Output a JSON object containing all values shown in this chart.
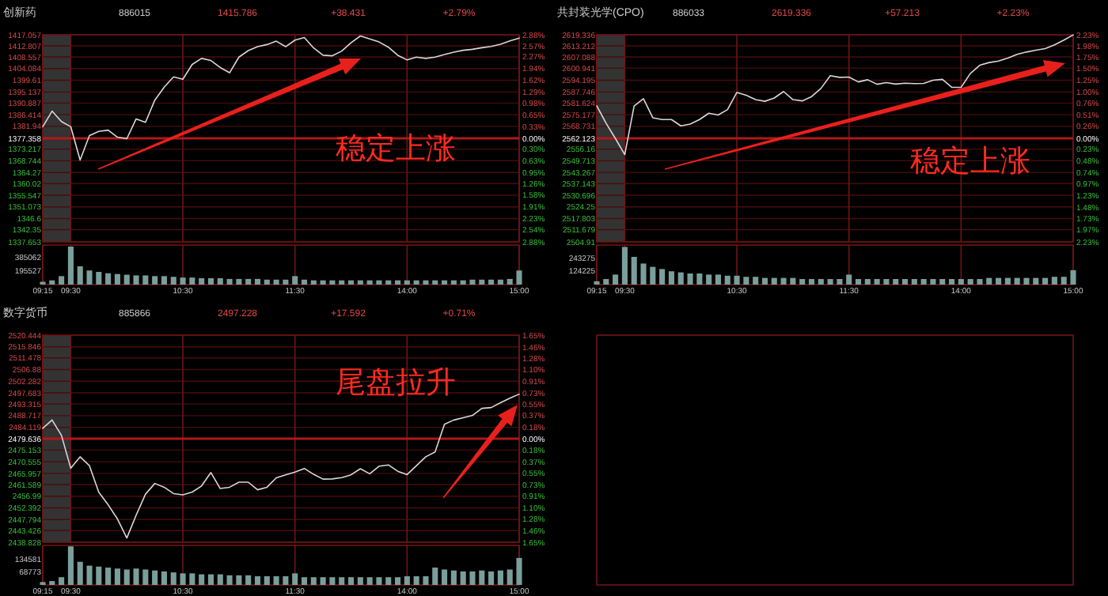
{
  "chart_data": [
    {
      "type": "line",
      "title": "创新药",
      "annotations": [
        "886015",
        "1415.786",
        "+38.431",
        "+2.79%",
        "稳定上涨"
      ],
      "categories": [
        "09:15",
        null,
        null,
        "09:30",
        null,
        null,
        null,
        null,
        null,
        null,
        null,
        null,
        null,
        null,
        null,
        "10:30",
        null,
        null,
        null,
        null,
        null,
        null,
        null,
        null,
        null,
        null,
        null,
        "11:30",
        null,
        null,
        null,
        null,
        null,
        null,
        null,
        null,
        null,
        null,
        null,
        "14:00",
        null,
        null,
        null,
        null,
        null,
        null,
        null,
        null,
        null,
        null,
        null,
        "15:00"
      ],
      "ylim": [
        1337.653,
        1417.057
      ],
      "yticks": [
        1417.057,
        1412.807,
        1408.557,
        1404.084,
        1399.61,
        1395.137,
        1390.887,
        1386.414,
        1381.94,
        1377.358,
        1373.217,
        1368.744,
        1364.27,
        1360.02,
        1355.547,
        1351.073,
        1346.6,
        1342.35,
        1337.653
      ],
      "y2lim": [
        -2.88,
        2.88
      ],
      "y2ticks": [
        {
          "value": 2.88,
          "label": "2.88%"
        },
        {
          "value": 2.57,
          "label": "2.57%"
        },
        {
          "value": 2.27,
          "label": "2.27%"
        },
        {
          "value": 1.94,
          "label": "1.94%"
        },
        {
          "value": 1.62,
          "label": "1.62%"
        },
        {
          "value": 1.29,
          "label": "1.29%"
        },
        {
          "value": 0.98,
          "label": "0.98%"
        },
        {
          "value": 0.65,
          "label": "0.65%"
        },
        {
          "value": 0.33,
          "label": "0.33%"
        },
        {
          "value": 0,
          "label": "0.00%"
        },
        {
          "value": -0.3,
          "label": "0.30%"
        },
        {
          "value": -0.63,
          "label": "0.63%"
        },
        {
          "value": -0.95,
          "label": "0.95%"
        },
        {
          "value": -1.26,
          "label": "1.26%"
        },
        {
          "value": -1.58,
          "label": "1.58%"
        },
        {
          "value": -1.91,
          "label": "1.91%"
        },
        {
          "value": -2.23,
          "label": "2.23%"
        },
        {
          "value": -2.54,
          "label": "2.54%"
        },
        {
          "value": -2.88,
          "label": "2.88%"
        }
      ],
      "tick_labels": "y",
      "grid": true,
      "ref_lines": [
        {
          "axis": "y",
          "value": 1377.358,
          "color": "#b01818"
        }
      ],
      "bands": [
        {
          "axis": "x",
          "from": "09:15",
          "to": "09:30",
          "color": "#333333"
        }
      ],
      "series": [
        {
          "color": "#d8d8d8",
          "values": [
            1381.8,
            1387.8,
            1383.8,
            1381.8,
            1369,
            1378.4,
            1380,
            1380.5,
            1377.8,
            1377.2,
            1384.8,
            1383.5,
            1392,
            1397,
            1400.9,
            1400,
            1405.7,
            1408,
            1407.2,
            1404.5,
            1402.5,
            1408.5,
            1411,
            1412.5,
            1413.3,
            1414.6,
            1412.5,
            1415,
            1416,
            1412,
            1409.2,
            1409,
            1410.8,
            1414,
            1416.6,
            1415.5,
            1414.3,
            1412.3,
            1409.2,
            1407.4,
            1408.5,
            1408,
            1408.5,
            1409.5,
            1410.4,
            1411.1,
            1411.5,
            1412.1,
            1412.6,
            1413.4,
            1414.7,
            1415.8
          ]
        }
      ]
    },
    {
      "type": "bar",
      "color": "#7a9e9b",
      "categories": [
        "09:15",
        null,
        null,
        "09:30",
        null,
        null,
        null,
        null,
        null,
        null,
        null,
        null,
        null,
        null,
        null,
        "10:30",
        null,
        null,
        null,
        null,
        null,
        null,
        null,
        null,
        null,
        null,
        null,
        "11:30",
        null,
        null,
        null,
        null,
        null,
        null,
        null,
        null,
        null,
        null,
        null,
        "14:00",
        null,
        null,
        null,
        null,
        null,
        null,
        null,
        null,
        null,
        null,
        null,
        "15:00"
      ],
      "ylim": [
        0,
        562000
      ],
      "yticks": [
        385062,
        195527
      ],
      "grid": "x",
      "values": [
        40000,
        60000,
        120000,
        540000,
        260000,
        200000,
        180000,
        160000,
        150000,
        140000,
        130000,
        130000,
        120000,
        120000,
        110000,
        100000,
        100000,
        90000,
        90000,
        90000,
        80000,
        80000,
        80000,
        80000,
        70000,
        70000,
        70000,
        120000,
        70000,
        60000,
        60000,
        60000,
        60000,
        60000,
        60000,
        60000,
        60000,
        60000,
        60000,
        60000,
        60000,
        60000,
        60000,
        60000,
        60000,
        60000,
        70000,
        70000,
        70000,
        70000,
        80000,
        200000
      ]
    },
    {
      "type": "line",
      "title": "共封装光学(CPO)",
      "annotations": [
        "886033",
        "2619.336",
        "+57.213",
        "+2.23%",
        "稳定上涨"
      ],
      "categories": [
        "09:15",
        null,
        null,
        "09:30",
        null,
        null,
        null,
        null,
        null,
        null,
        null,
        null,
        null,
        null,
        null,
        "10:30",
        null,
        null,
        null,
        null,
        null,
        null,
        null,
        null,
        null,
        null,
        null,
        "11:30",
        null,
        null,
        null,
        null,
        null,
        null,
        null,
        null,
        null,
        null,
        null,
        "14:00",
        null,
        null,
        null,
        null,
        null,
        null,
        null,
        null,
        null,
        null,
        null,
        "15:00"
      ],
      "ylim": [
        2504.91,
        2619.336
      ],
      "yticks": [
        2619.336,
        2613.212,
        2607.088,
        2600.941,
        2594.195,
        2587.746,
        2581.624,
        2575.177,
        2568.731,
        2562.123,
        2556.16,
        2549.713,
        2543.267,
        2537.143,
        2530.696,
        2524.25,
        2517.803,
        2511.679,
        2504.91
      ],
      "y2lim": [
        -2.23,
        2.23
      ],
      "y2ticks": [
        {
          "value": 2.23,
          "label": "2.23%"
        },
        {
          "value": 1.98,
          "label": "1.98%"
        },
        {
          "value": 1.75,
          "label": "1.75%"
        },
        {
          "value": 1.5,
          "label": "1.50%"
        },
        {
          "value": 1.25,
          "label": "1.25%"
        },
        {
          "value": 1,
          "label": "1.00%"
        },
        {
          "value": 0.76,
          "label": "0.76%"
        },
        {
          "value": 0.51,
          "label": "0.51%"
        },
        {
          "value": 0.26,
          "label": "0.26%"
        },
        {
          "value": 0,
          "label": "0.00%"
        },
        {
          "value": -0.23,
          "label": "0.23%"
        },
        {
          "value": -0.48,
          "label": "0.48%"
        },
        {
          "value": -0.74,
          "label": "0.74%"
        },
        {
          "value": -0.97,
          "label": "0.97%"
        },
        {
          "value": -1.23,
          "label": "1.23%"
        },
        {
          "value": -1.48,
          "label": "1.48%"
        },
        {
          "value": -1.73,
          "label": "1.73%"
        },
        {
          "value": -1.97,
          "label": "1.97%"
        },
        {
          "value": -2.23,
          "label": "2.23%"
        }
      ],
      "tick_labels": "y",
      "grid": true,
      "ref_lines": [
        {
          "axis": "y",
          "value": 2562.123,
          "color": "#b01818"
        }
      ],
      "bands": [
        {
          "axis": "x",
          "from": "09:15",
          "to": "09:30",
          "color": "#333333"
        }
      ],
      "series": [
        {
          "color": "#d8d8d8",
          "values": [
            2580.1,
            2570.5,
            2562,
            2553.1,
            2580,
            2584,
            2573.5,
            2572.5,
            2572.5,
            2569,
            2570,
            2572.5,
            2576,
            2575,
            2578,
            2587.5,
            2585.9,
            2583.5,
            2582.6,
            2584.4,
            2588,
            2583.5,
            2582.8,
            2585.2,
            2589.7,
            2596.7,
            2595.8,
            2596,
            2593.3,
            2594.5,
            2592,
            2592.9,
            2592.1,
            2592.6,
            2592.4,
            2592.5,
            2594.2,
            2594.7,
            2590.3,
            2590.3,
            2598,
            2602.5,
            2604,
            2604.8,
            2606.5,
            2608.5,
            2609.8,
            2610.8,
            2611.7,
            2613.8,
            2616.4,
            2619.3
          ]
        }
      ]
    },
    {
      "type": "bar",
      "color": "#7a9e9b",
      "categories": [
        "09:15",
        null,
        null,
        "09:30",
        null,
        null,
        null,
        null,
        null,
        null,
        null,
        null,
        null,
        null,
        null,
        "10:30",
        null,
        null,
        null,
        null,
        null,
        null,
        null,
        null,
        null,
        null,
        null,
        "11:30",
        null,
        null,
        null,
        null,
        null,
        null,
        null,
        null,
        null,
        null,
        null,
        "14:00",
        null,
        null,
        null,
        null,
        null,
        null,
        null,
        null,
        null,
        null,
        null,
        "15:00"
      ],
      "ylim": [
        0,
        357000
      ],
      "yticks": [
        243275,
        124225
      ],
      "grid": "x",
      "values": [
        30000,
        50000,
        90000,
        340000,
        250000,
        190000,
        160000,
        140000,
        120000,
        110000,
        100000,
        100000,
        90000,
        90000,
        80000,
        80000,
        70000,
        70000,
        60000,
        60000,
        60000,
        60000,
        50000,
        50000,
        50000,
        50000,
        50000,
        90000,
        50000,
        50000,
        50000,
        50000,
        50000,
        50000,
        50000,
        50000,
        50000,
        50000,
        50000,
        50000,
        50000,
        50000,
        60000,
        60000,
        60000,
        60000,
        60000,
        60000,
        60000,
        70000,
        70000,
        130000
      ]
    },
    {
      "type": "line",
      "title": "数字货币",
      "annotations": [
        "885866",
        "2497.228",
        "+17.592",
        "+0.71%",
        "尾盘拉升"
      ],
      "categories": [
        "09:15",
        null,
        null,
        "09:30",
        null,
        null,
        null,
        null,
        null,
        null,
        null,
        null,
        null,
        null,
        null,
        "10:30",
        null,
        null,
        null,
        null,
        null,
        null,
        null,
        null,
        null,
        null,
        null,
        "11:30",
        null,
        null,
        null,
        null,
        null,
        null,
        null,
        null,
        null,
        null,
        null,
        "14:00",
        null,
        null,
        null,
        null,
        null,
        null,
        null,
        null,
        null,
        null,
        null,
        "15:00"
      ],
      "ylim": [
        2438.828,
        2520.444
      ],
      "yticks": [
        2520.444,
        2515.846,
        2511.478,
        2506.88,
        2502.282,
        2497.683,
        2493.315,
        2488.717,
        2484.119,
        2479.636,
        2475.153,
        2470.555,
        2465.957,
        2461.589,
        2456.99,
        2452.392,
        2447.794,
        2443.426,
        2438.828
      ],
      "y2lim": [
        -1.65,
        1.65
      ],
      "y2ticks": [
        {
          "value": 1.65,
          "label": "1.65%"
        },
        {
          "value": 1.46,
          "label": "1.46%"
        },
        {
          "value": 1.28,
          "label": "1.28%"
        },
        {
          "value": 1.1,
          "label": "1.10%"
        },
        {
          "value": 0.91,
          "label": "0.91%"
        },
        {
          "value": 0.73,
          "label": "0.73%"
        },
        {
          "value": 0.55,
          "label": "0.55%"
        },
        {
          "value": 0.37,
          "label": "0.37%"
        },
        {
          "value": 0.18,
          "label": "0.18%"
        },
        {
          "value": 0,
          "label": "0.00%"
        },
        {
          "value": -0.18,
          "label": "0.18%"
        },
        {
          "value": -0.37,
          "label": "0.37%"
        },
        {
          "value": -0.55,
          "label": "0.55%"
        },
        {
          "value": -0.73,
          "label": "0.73%"
        },
        {
          "value": -0.91,
          "label": "0.91%"
        },
        {
          "value": -1.1,
          "label": "1.10%"
        },
        {
          "value": -1.28,
          "label": "1.28%"
        },
        {
          "value": -1.46,
          "label": "1.46%"
        },
        {
          "value": -1.65,
          "label": "1.65%"
        }
      ],
      "tick_labels": "y",
      "grid": true,
      "ref_lines": [
        {
          "axis": "y",
          "value": 2479.636,
          "color": "#b01818"
        }
      ],
      "bands": [
        {
          "axis": "x",
          "from": "09:15",
          "to": "09:30",
          "color": "#333333"
        }
      ],
      "series": [
        {
          "color": "#d8d8d8",
          "values": [
            2483.7,
            2487,
            2481,
            2468,
            2472.5,
            2469,
            2458.5,
            2453.6,
            2448,
            2440.5,
            2449.5,
            2457.8,
            2462,
            2460.5,
            2458,
            2457.5,
            2458.6,
            2461,
            2466.3,
            2460,
            2460.5,
            2462.5,
            2462.5,
            2459.5,
            2460.5,
            2464.2,
            2465.4,
            2466.5,
            2467.9,
            2465.6,
            2463.7,
            2463.8,
            2464.3,
            2465.4,
            2467.8,
            2465.8,
            2468.8,
            2469.3,
            2466.8,
            2465.5,
            2469,
            2472.5,
            2474.4,
            2485.3,
            2487,
            2487.9,
            2488.8,
            2491.6,
            2491.9,
            2493.8,
            2495.6,
            2497.2
          ]
        }
      ]
    },
    {
      "type": "bar",
      "color": "#7a9e9b",
      "categories": [
        "09:15",
        null,
        null,
        "09:30",
        null,
        null,
        null,
        null,
        null,
        null,
        null,
        null,
        null,
        null,
        null,
        "10:30",
        null,
        null,
        null,
        null,
        null,
        null,
        null,
        null,
        null,
        null,
        null,
        "11:30",
        null,
        null,
        null,
        null,
        null,
        null,
        null,
        null,
        null,
        null,
        null,
        "14:00",
        null,
        null,
        null,
        null,
        null,
        null,
        null,
        null,
        null,
        null,
        null,
        "15:00"
      ],
      "ylim": [
        0,
        205000
      ],
      "yticks": [
        134581,
        68773
      ],
      "grid": "x",
      "values": [
        15000,
        20000,
        40000,
        200000,
        120000,
        100000,
        95000,
        90000,
        85000,
        80000,
        85000,
        80000,
        75000,
        70000,
        65000,
        60000,
        60000,
        55000,
        55000,
        55000,
        50000,
        50000,
        50000,
        45000,
        45000,
        45000,
        45000,
        60000,
        40000,
        40000,
        40000,
        40000,
        40000,
        40000,
        40000,
        40000,
        40000,
        40000,
        40000,
        45000,
        45000,
        45000,
        90000,
        80000,
        75000,
        70000,
        70000,
        75000,
        70000,
        75000,
        80000,
        140000
      ]
    }
  ]
}
